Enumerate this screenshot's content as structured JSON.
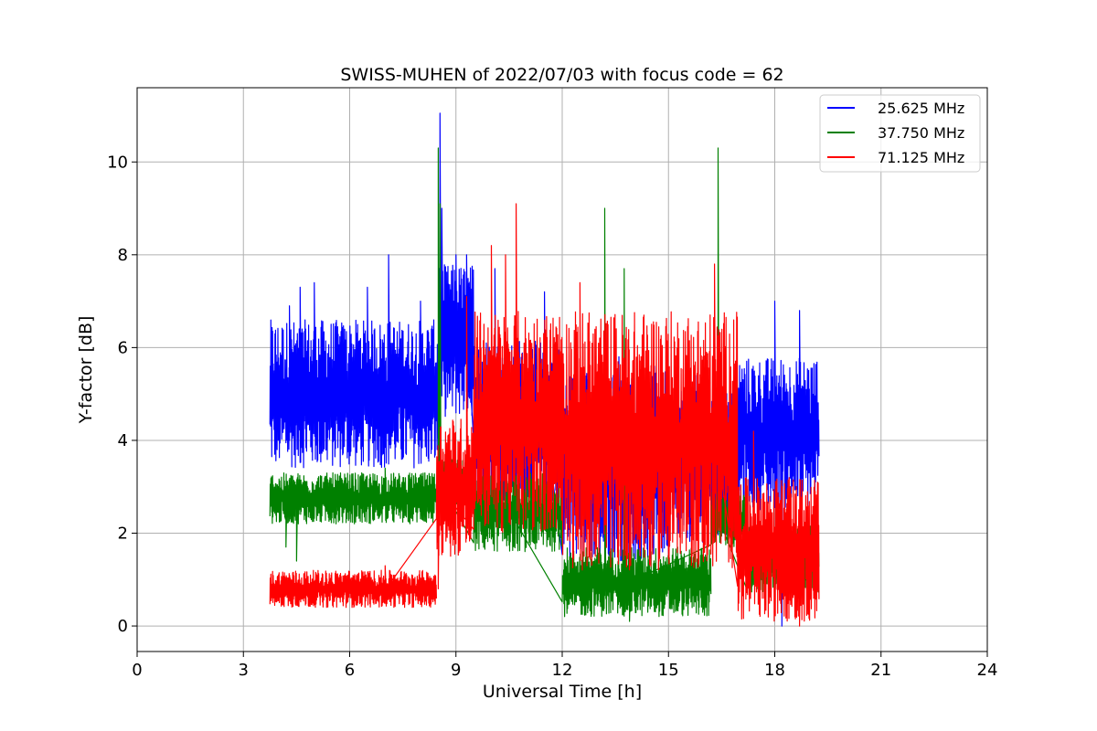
{
  "chart_data": {
    "type": "line",
    "title": "SWISS-MUHEN of 2022/07/03 with focus code = 62",
    "xlabel": "Universal Time [h]",
    "ylabel": "Y-factor [dB]",
    "xlim": [
      0,
      24
    ],
    "ylim": [
      -0.55,
      11.6
    ],
    "xticks": [
      0,
      3,
      6,
      9,
      12,
      15,
      18,
      21,
      24
    ],
    "xtick_labels": [
      "0",
      "3",
      "6",
      "9",
      "12",
      "15",
      "18",
      "21",
      "24"
    ],
    "yticks": [
      0,
      2,
      4,
      6,
      8,
      10
    ],
    "ytick_labels": [
      "0",
      "2",
      "4",
      "6",
      "8",
      "10"
    ],
    "grid": true,
    "legend_position": "top-right",
    "series": [
      {
        "name": "25.625 MHz",
        "color": "#0000ff",
        "segments": [
          {
            "x": [
              3.75,
              8.5
            ],
            "low": 3.4,
            "high": 6.6,
            "peaks": [
              [
                4.3,
                6.9
              ],
              [
                4.6,
                7.3
              ],
              [
                5.0,
                7.4
              ],
              [
                6.5,
                7.3
              ],
              [
                7.1,
                8.0
              ],
              [
                8.0,
                7.0
              ]
            ]
          },
          {
            "x": [
              8.5,
              9.5
            ],
            "low": 4.5,
            "high": 7.8,
            "peaks": [
              [
                8.55,
                11.05
              ],
              [
                8.6,
                9.0
              ],
              [
                9.0,
                8.0
              ],
              [
                9.3,
                8.0
              ]
            ]
          },
          {
            "x": [
              9.5,
              12.0
            ],
            "low": 2.6,
            "high": 6.2,
            "peaks": [
              [
                10.1,
                7.7
              ],
              [
                11.5,
                7.2
              ]
            ]
          },
          {
            "x": [
              12.0,
              15.0
            ],
            "low": 1.4,
            "high": 5.5,
            "peaks": [
              [
                13.6,
                5.8
              ],
              [
                14.6,
                5.6
              ]
            ]
          },
          {
            "x": [
              15.0,
              17.0
            ],
            "low": 1.8,
            "high": 5.2,
            "peaks": [
              [
                15.8,
                5.4
              ],
              [
                16.6,
                5.3
              ]
            ]
          },
          {
            "x": [
              17.0,
              19.25
            ],
            "low": 2.5,
            "high": 5.8,
            "peaks": [
              [
                18.0,
                7.0
              ],
              [
                18.7,
                6.8
              ],
              [
                18.2,
                0.0
              ]
            ]
          }
        ]
      },
      {
        "name": "37.750 MHz",
        "color": "#008000",
        "segments": [
          {
            "x": [
              3.75,
              8.5
            ],
            "low": 2.2,
            "high": 3.3,
            "peaks": [
              [
                4.5,
                1.4
              ],
              [
                4.2,
                1.7
              ],
              [
                7.0,
                3.4
              ]
            ]
          },
          {
            "x": [
              8.5,
              9.5
            ],
            "low": 2.5,
            "high": 3.6,
            "peaks": [
              [
                8.5,
                10.3
              ],
              [
                8.55,
                9.1
              ]
            ]
          },
          {
            "x": [
              9.5,
              12.0
            ],
            "low": 1.6,
            "high": 3.3,
            "peaks": [
              [
                10.5,
                3.4
              ]
            ]
          },
          {
            "x": [
              12.0,
              16.2
            ],
            "low": 0.2,
            "high": 1.7,
            "peaks": [
              [
                13.2,
                9.0
              ],
              [
                13.75,
                7.7
              ],
              [
                13.9,
                0.1
              ]
            ]
          },
          {
            "x": [
              16.2,
              17.2
            ],
            "low": 1.7,
            "high": 2.9,
            "peaks": [
              [
                16.4,
                10.3
              ]
            ]
          },
          {
            "x": [
              17.2,
              19.25
            ],
            "low": 0.7,
            "high": 2.2,
            "peaks": [
              [
                17.3,
                2.6
              ]
            ]
          }
        ]
      },
      {
        "name": "71.125 MHz",
        "color": "#ff0000",
        "segments": [
          {
            "x": [
              3.75,
              8.45
            ],
            "low": 0.4,
            "high": 1.2,
            "peaks": [
              [
                7.0,
                1.3
              ]
            ]
          },
          {
            "x": [
              8.45,
              9.5
            ],
            "low": 1.5,
            "high": 4.5,
            "peaks": [
              [
                9.3,
                7.1
              ],
              [
                8.5,
                0.8
              ]
            ]
          },
          {
            "x": [
              9.5,
              12.0
            ],
            "low": 2.0,
            "high": 6.8,
            "peaks": [
              [
                10.0,
                8.2
              ],
              [
                10.4,
                8.0
              ],
              [
                10.7,
                9.1
              ]
            ]
          },
          {
            "x": [
              12.0,
              16.95
            ],
            "low": 1.2,
            "high": 6.8,
            "peaks": [
              [
                12.5,
                7.4
              ],
              [
                16.3,
                7.8
              ]
            ]
          },
          {
            "x": [
              16.95,
              19.25
            ],
            "low": 0.1,
            "high": 3.2,
            "peaks": [
              [
                17.4,
                4.2
              ],
              [
                18.7,
                0.0
              ]
            ]
          }
        ]
      }
    ]
  }
}
